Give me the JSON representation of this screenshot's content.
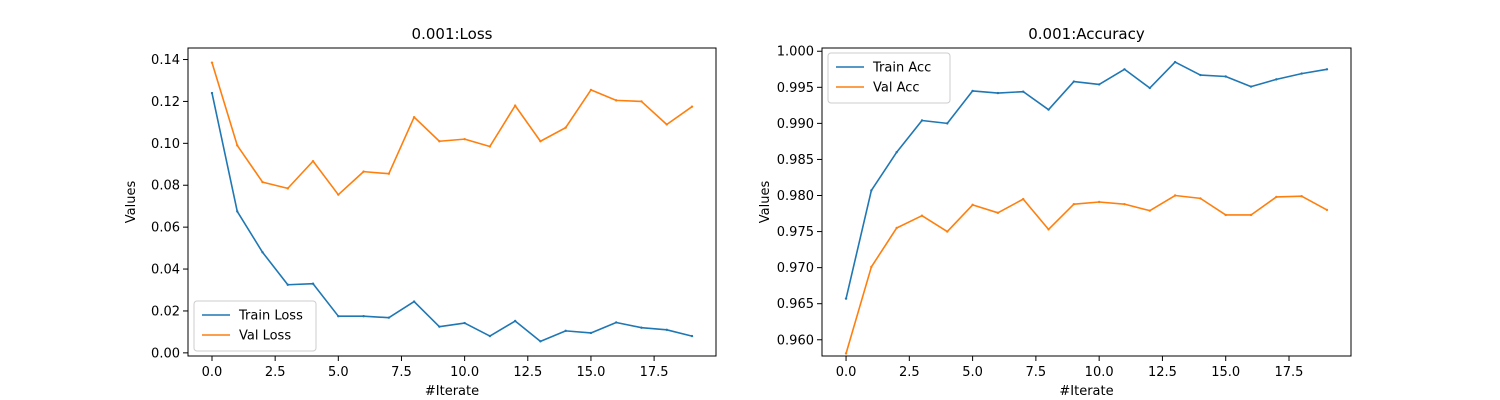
{
  "chart_data": [
    {
      "type": "line",
      "title": "0.001:Loss",
      "xlabel": "#Iterate",
      "ylabel": "Values",
      "xlim": [
        -0.95,
        19.95
      ],
      "ylim": [
        -0.0015,
        0.1455
      ],
      "xticks": [
        0.0,
        2.5,
        5.0,
        7.5,
        10.0,
        12.5,
        15.0,
        17.5
      ],
      "xtick_labels": [
        "0.0",
        "2.5",
        "5.0",
        "7.5",
        "10.0",
        "12.5",
        "15.0",
        "17.5"
      ],
      "yticks": [
        0.0,
        0.02,
        0.04,
        0.06,
        0.08,
        0.1,
        0.12,
        0.14
      ],
      "ytick_labels": [
        "0.00",
        "0.02",
        "0.04",
        "0.06",
        "0.08",
        "0.10",
        "0.12",
        "0.14"
      ],
      "legend_position": "lower-left",
      "x": [
        0,
        1,
        2,
        3,
        4,
        5,
        6,
        7,
        8,
        9,
        10,
        11,
        12,
        13,
        14,
        15,
        16,
        17,
        18,
        19
      ],
      "series": [
        {
          "name": "Train Loss",
          "color": "#1f77b4",
          "values": [
            0.124,
            0.0675,
            0.048,
            0.0325,
            0.033,
            0.0175,
            0.0175,
            0.0168,
            0.0245,
            0.0125,
            0.0142,
            0.008,
            0.0152,
            0.0055,
            0.0105,
            0.0095,
            0.0145,
            0.012,
            0.011,
            0.008
          ]
        },
        {
          "name": "Val Loss",
          "color": "#ff7f0e",
          "values": [
            0.1385,
            0.099,
            0.0815,
            0.0785,
            0.0915,
            0.0755,
            0.0865,
            0.0855,
            0.1125,
            0.101,
            0.102,
            0.0985,
            0.118,
            0.101,
            0.1075,
            0.1255,
            0.1205,
            0.12,
            0.109,
            0.1175
          ]
        }
      ]
    },
    {
      "type": "line",
      "title": "0.001:Accuracy",
      "xlabel": "#Iterate",
      "ylabel": "Values",
      "xlim": [
        -0.95,
        19.95
      ],
      "ylim": [
        0.95775,
        1.00045
      ],
      "xticks": [
        0.0,
        2.5,
        5.0,
        7.5,
        10.0,
        12.5,
        15.0,
        17.5
      ],
      "xtick_labels": [
        "0.0",
        "2.5",
        "5.0",
        "7.5",
        "10.0",
        "12.5",
        "15.0",
        "17.5"
      ],
      "yticks": [
        0.96,
        0.965,
        0.97,
        0.975,
        0.98,
        0.985,
        0.99,
        0.995,
        1.0
      ],
      "ytick_labels": [
        "0.960",
        "0.965",
        "0.970",
        "0.975",
        "0.980",
        "0.985",
        "0.990",
        "0.995",
        "1.000"
      ],
      "legend_position": "upper-left",
      "x": [
        0,
        1,
        2,
        3,
        4,
        5,
        6,
        7,
        8,
        9,
        10,
        11,
        12,
        13,
        14,
        15,
        16,
        17,
        18,
        19
      ],
      "series": [
        {
          "name": "Train Acc",
          "color": "#1f77b4",
          "values": [
            0.9657,
            0.9807,
            0.986,
            0.9904,
            0.99,
            0.9945,
            0.9942,
            0.9944,
            0.9919,
            0.9958,
            0.9954,
            0.9975,
            0.9949,
            0.9985,
            0.9967,
            0.9965,
            0.9951,
            0.9961,
            0.9969,
            0.9975
          ]
        },
        {
          "name": "Val Acc",
          "color": "#ff7f0e",
          "values": [
            0.9581,
            0.9701,
            0.9755,
            0.9772,
            0.975,
            0.9787,
            0.9776,
            0.9795,
            0.9753,
            0.9788,
            0.9791,
            0.9788,
            0.9779,
            0.98,
            0.9796,
            0.9773,
            0.9773,
            0.9798,
            0.9799,
            0.978
          ]
        }
      ]
    }
  ]
}
